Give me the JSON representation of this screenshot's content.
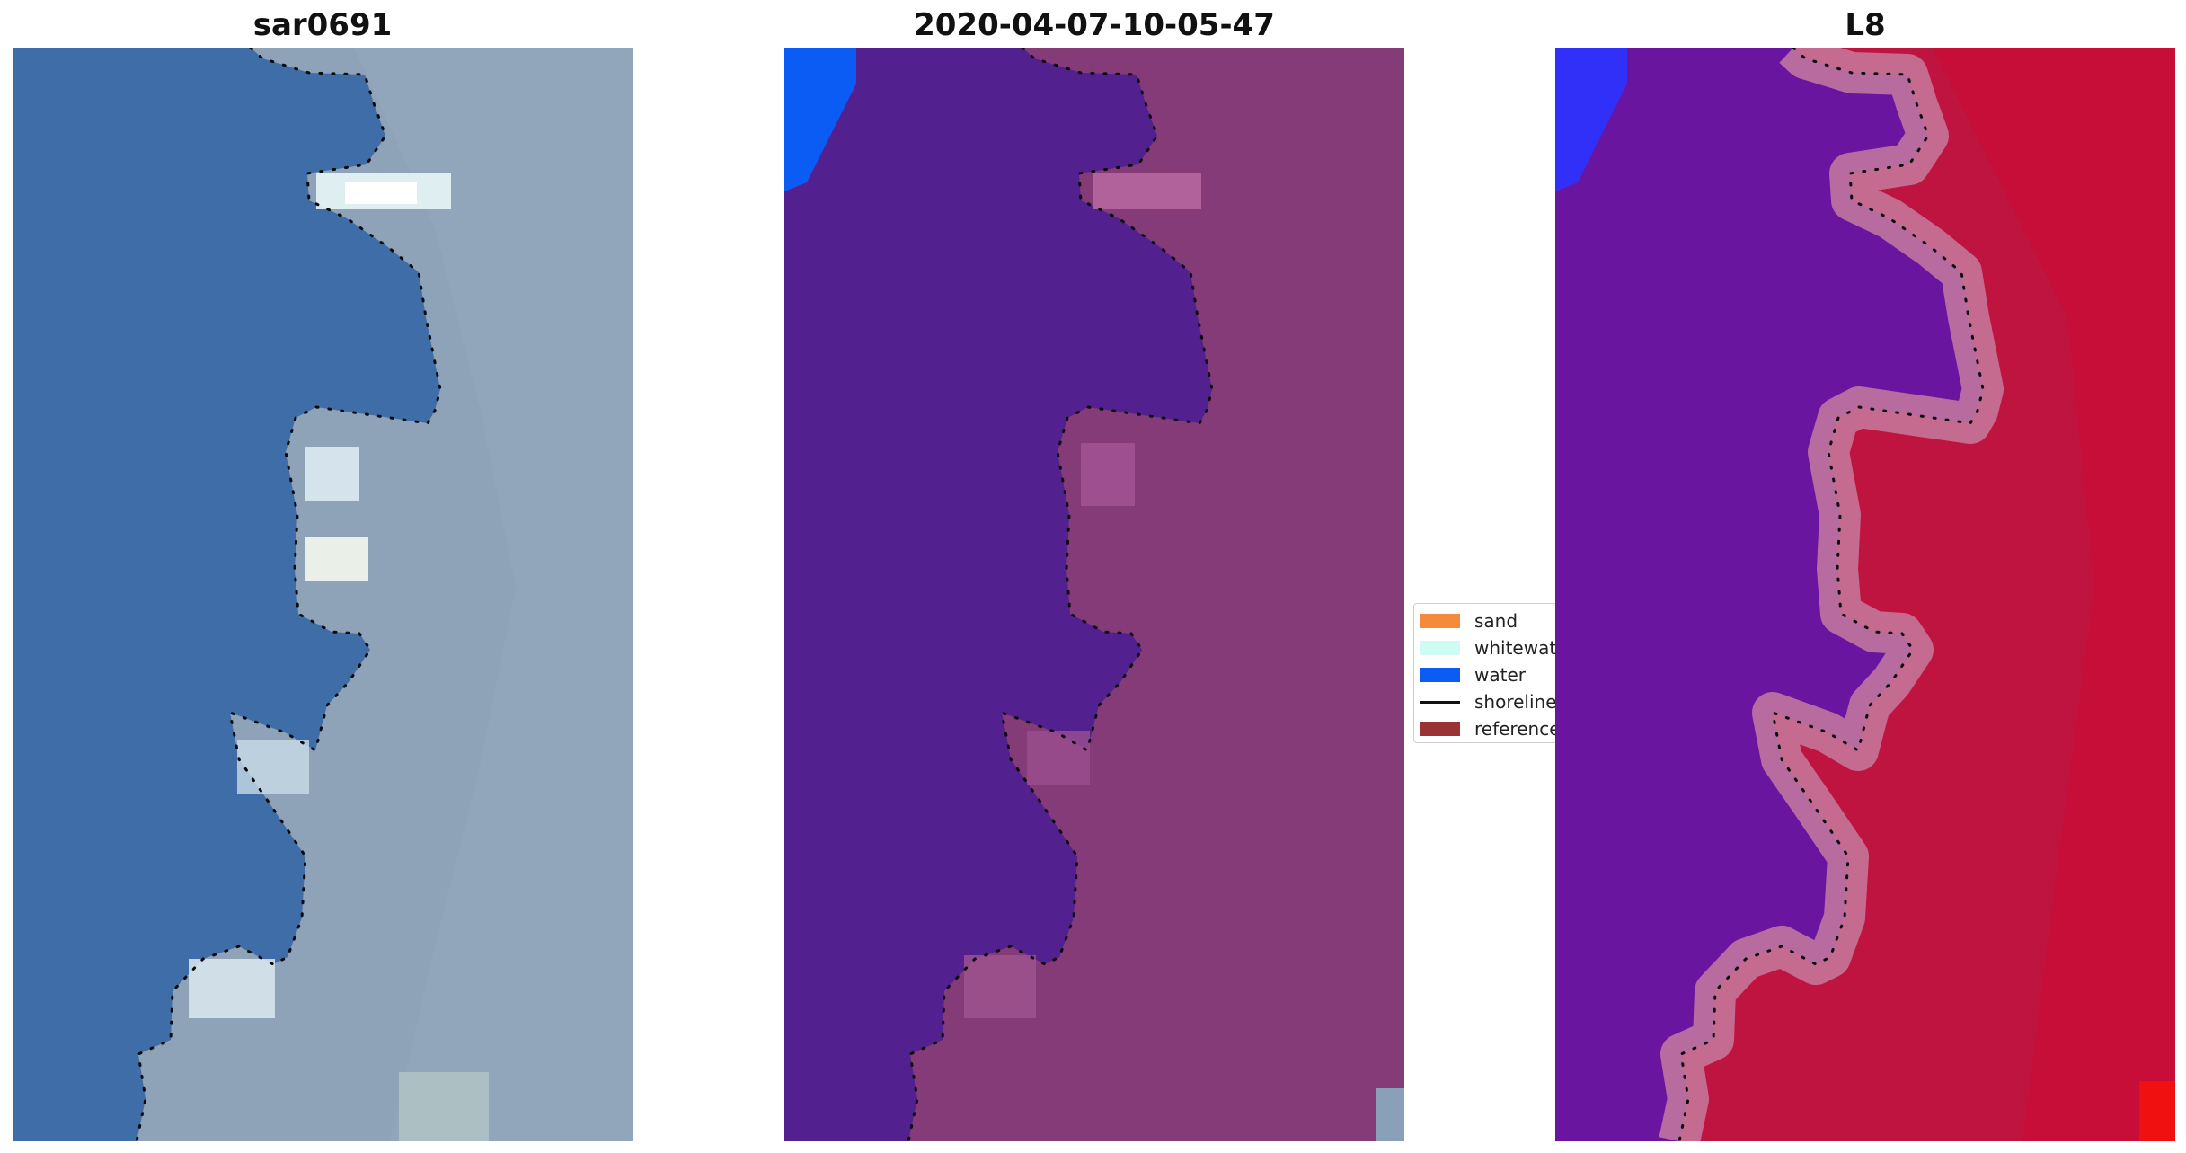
{
  "panels": [
    {
      "title": "sar0691"
    },
    {
      "title": "2020-04-07-10-05-47"
    },
    {
      "title": "L8"
    }
  ],
  "legend": {
    "items": [
      {
        "label": "sand",
        "color": "#f58a3a",
        "kind": "patch"
      },
      {
        "label": "whitewater",
        "color": "#ccfcf4",
        "kind": "patch"
      },
      {
        "label": "water",
        "color": "#0a5cf5",
        "kind": "patch"
      },
      {
        "label": "shoreline",
        "color": "#111111",
        "kind": "line"
      },
      {
        "label": "reference",
        "color": "#9a3434",
        "kind": "patch"
      }
    ]
  },
  "colors": {
    "rgb_water": "#3e6da8",
    "rgb_land": "#8ea3b8",
    "classified_water": "#52208f",
    "classified_land": "#843b78",
    "classified_blue": "#0a5cf5",
    "mndwi_water": "#6a15a0",
    "mndwi_land": "#c01440",
    "mndwi_blue": "#3030f8"
  }
}
